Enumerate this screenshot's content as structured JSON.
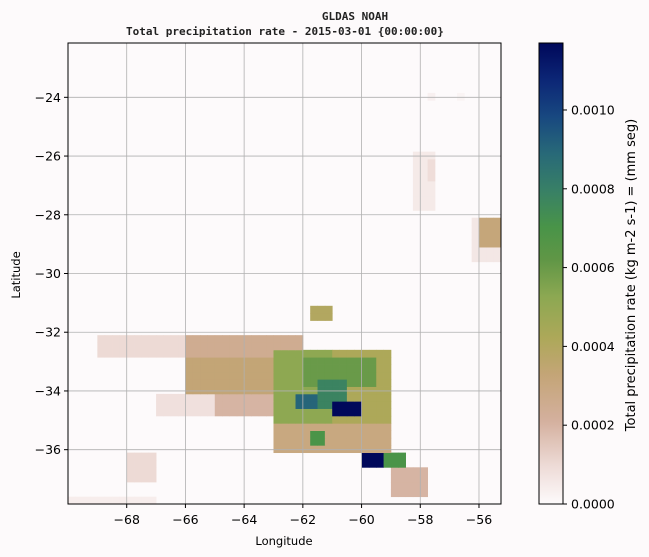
{
  "chart_data": {
    "type": "heatmap",
    "title": "GLDAS NOAH",
    "subtitle": "Total precipitation rate - 2015-03-01 {00:00:00}",
    "xlabel": "Longitude",
    "ylabel": "Latitude",
    "colorbar_label": "Total precipitation rate (kg m-2 s-1) = (mm seg)",
    "xlim": [
      -70,
      -55.25
    ],
    "ylim": [
      -37.85,
      -22.15
    ],
    "xticks": [
      -68,
      -66,
      -64,
      -62,
      -60,
      -58,
      -56
    ],
    "xtick_labels": [
      "−68",
      "−66",
      "−64",
      "−62",
      "−60",
      "−58",
      "−56"
    ],
    "yticks": [
      -24,
      -26,
      -28,
      -30,
      -32,
      -34,
      -36
    ],
    "ytick_labels": [
      "−24",
      "−26",
      "−28",
      "−30",
      "−32",
      "−34",
      "−36"
    ],
    "clim": [
      0,
      0.00117
    ],
    "cbar_ticks": [
      0,
      0.0002,
      0.0004,
      0.0006,
      0.0008,
      0.001
    ],
    "cbar_tick_labels": [
      "0.0000",
      "0.0002",
      "0.0004",
      "0.0006",
      "0.0008",
      "0.0010"
    ],
    "colormap": "gist_earth_r",
    "grid": true,
    "cell_size_deg": 0.25,
    "regions": [
      {
        "lon": [
          -57.8,
          -57.4
        ],
        "lat": [
          -24.1,
          -23.9
        ],
        "value": 3e-05
      },
      {
        "lon": [
          -56.8,
          -56.4
        ],
        "lat": [
          -24.1,
          -23.8
        ],
        "value": 2e-05
      },
      {
        "lon": [
          -58.2,
          -57.4
        ],
        "lat": [
          -27.9,
          -25.9
        ],
        "value": 5e-05
      },
      {
        "lon": [
          -57.8,
          -57.5
        ],
        "lat": [
          -26.8,
          -26.2
        ],
        "value": 9e-05
      },
      {
        "lon": [
          -56.2,
          -55.25
        ],
        "lat": [
          -29.5,
          -28.0
        ],
        "value": 6e-05
      },
      {
        "lon": [
          -56.0,
          -55.25
        ],
        "lat": [
          -29.1,
          -28.0
        ],
        "value": 0.00032
      },
      {
        "lon": [
          -69.0,
          -66.0
        ],
        "lat": [
          -32.9,
          -32.0
        ],
        "value": 0.0001
      },
      {
        "lon": [
          -66.0,
          -62.0
        ],
        "lat": [
          -32.9,
          -32.0
        ],
        "value": 0.00025
      },
      {
        "lon": [
          -66.0,
          -63.0
        ],
        "lat": [
          -34.0,
          -32.9
        ],
        "value": 0.00033
      },
      {
        "lon": [
          -67.0,
          -65.0
        ],
        "lat": [
          -34.9,
          -34.0
        ],
        "value": 8e-05
      },
      {
        "lon": [
          -65.0,
          -63.0
        ],
        "lat": [
          -34.9,
          -34.0
        ],
        "value": 0.0002
      },
      {
        "lon": [
          -63.0,
          -59.0
        ],
        "lat": [
          -35.0,
          -32.5
        ],
        "value": 0.00042
      },
      {
        "lon": [
          -63.0,
          -61.0
        ],
        "lat": [
          -35.0,
          -32.5
        ],
        "value": 0.00052
      },
      {
        "lon": [
          -62.0,
          -59.5
        ],
        "lat": [
          -33.9,
          -32.9
        ],
        "value": 0.0006
      },
      {
        "lon": [
          -61.5,
          -60.5
        ],
        "lat": [
          -34.5,
          -33.7
        ],
        "value": 0.00078
      },
      {
        "lon": [
          -62.2,
          -61.6
        ],
        "lat": [
          -34.6,
          -34.0
        ],
        "value": 0.0009
      },
      {
        "lon": [
          -61.0,
          -60.0
        ],
        "lat": [
          -34.8,
          -34.4
        ],
        "value": 0.00117
      },
      {
        "lon": [
          -63.0,
          -59.0
        ],
        "lat": [
          -36.0,
          -35.0
        ],
        "value": 0.0003
      },
      {
        "lon": [
          -61.8,
          -61.2
        ],
        "lat": [
          -35.9,
          -35.4
        ],
        "value": 0.0007
      },
      {
        "lon": [
          -61.8,
          -61.0
        ],
        "lat": [
          -31.5,
          -31.0
        ],
        "value": 0.0004
      },
      {
        "lon": [
          -60.0,
          -58.5
        ],
        "lat": [
          -36.7,
          -36.0
        ],
        "value": 0.0007
      },
      {
        "lon": [
          -59.9,
          -59.3
        ],
        "lat": [
          -36.6,
          -36.2
        ],
        "value": 0.00117
      },
      {
        "lon": [
          -59.0,
          -57.8
        ],
        "lat": [
          -37.7,
          -36.5
        ],
        "value": 0.0002
      },
      {
        "lon": [
          -68.0,
          -67.0
        ],
        "lat": [
          -37.0,
          -36.0
        ],
        "value": 0.0001
      },
      {
        "lon": [
          -70.0,
          -67.0
        ],
        "lat": [
          -37.85,
          -37.5
        ],
        "value": 4e-05
      }
    ]
  }
}
